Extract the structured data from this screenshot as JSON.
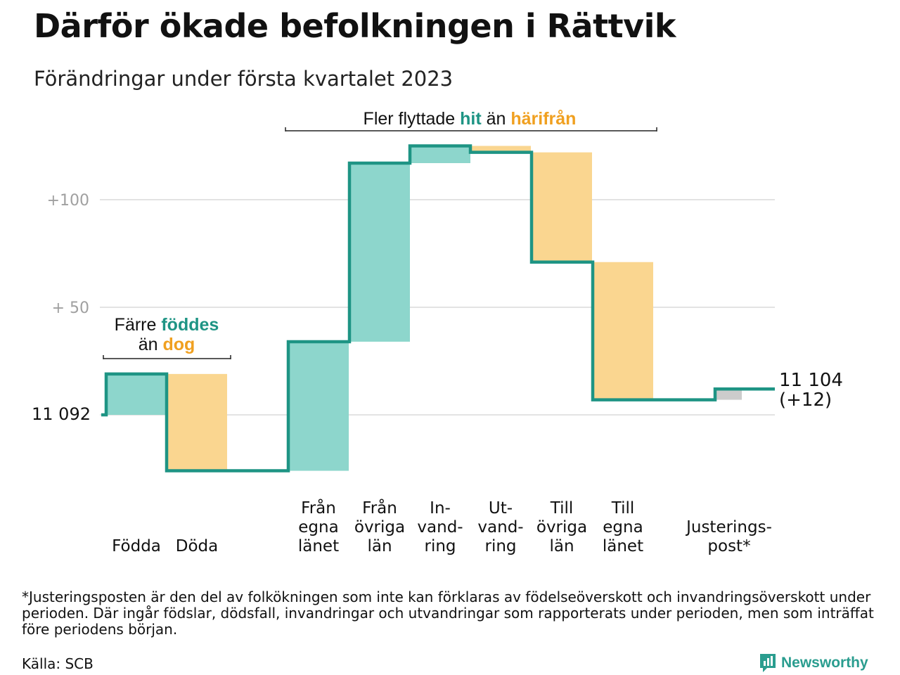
{
  "header": {
    "title": "Därför ökade befolkningen i Rättvik",
    "subtitle": "Förändringar under första kvartalet 2023"
  },
  "colors": {
    "inflow": "#8dd6cc",
    "outflow": "#fad690",
    "adjustment": "#cccccc",
    "line": "#1e9484",
    "teal_text": "#1e9484",
    "orange_text": "#f0a020",
    "grid": "#e3e3e3",
    "tick_text": "#a0a0a0"
  },
  "chart_data": {
    "type": "waterfall",
    "title": "Därför ökade befolkningen i Rättvik",
    "subtitle": "Förändringar under första kvartalet 2023",
    "start_value": 11092,
    "end_value": 11104,
    "end_label": "11 104",
    "end_change_label": "(+12)",
    "start_label": "11 092",
    "y_axis": {
      "ticks": [
        {
          "value": 0,
          "label": ""
        },
        {
          "value": 50,
          "label": "+ 50"
        },
        {
          "value": 100,
          "label": "+100"
        }
      ],
      "range": [
        -27,
        135
      ],
      "grid": true
    },
    "categories": [
      {
        "label_lines": [
          "Födda"
        ],
        "delta": 19,
        "kind": "inflow"
      },
      {
        "label_lines": [
          "Döda"
        ],
        "delta": -45,
        "kind": "outflow"
      },
      {
        "label_lines": [
          "Från",
          "egna",
          "länet"
        ],
        "delta": 60,
        "kind": "inflow"
      },
      {
        "label_lines": [
          "Från",
          "övriga",
          "län"
        ],
        "delta": 83,
        "kind": "inflow"
      },
      {
        "label_lines": [
          "In-",
          "vand-",
          "ring"
        ],
        "delta": 8,
        "kind": "inflow"
      },
      {
        "label_lines": [
          "Ut-",
          "vand-",
          "ring"
        ],
        "delta": -3,
        "kind": "outflow"
      },
      {
        "label_lines": [
          "Till",
          "övriga",
          "län"
        ],
        "delta": -51,
        "kind": "outflow"
      },
      {
        "label_lines": [
          "Till",
          "egna",
          "länet"
        ],
        "delta": -64,
        "kind": "outflow"
      },
      {
        "label_lines": [
          "Justerings-",
          "post*"
        ],
        "delta": 5,
        "kind": "adjustment"
      }
    ],
    "annotations": [
      {
        "parts": [
          {
            "text": "Färre ",
            "style": "plain"
          },
          {
            "text": "föddes",
            "style": "teal"
          }
        ]
      },
      {
        "parts": [
          {
            "text": "än ",
            "style": "plain"
          },
          {
            "text": "dog",
            "style": "orange"
          }
        ]
      },
      {
        "parts": [
          {
            "text": "Fler flyttade ",
            "style": "plain"
          },
          {
            "text": "hit",
            "style": "teal"
          },
          {
            "text": " än ",
            "style": "plain"
          },
          {
            "text": "härifrån",
            "style": "orange"
          }
        ]
      }
    ]
  },
  "footer": {
    "footnote": "*Justeringsposten är den del av folkökningen som inte kan förklaras av födelseöverskott och invandringsöverskott under perioden. Där ingår födslar, dödsfall, invandringar och utvandringar som rapporterats under perioden, men som inträffat före periodens början.",
    "source": "Källa: SCB",
    "brand": "Newsworthy",
    "brand_icon": "newsworthy-logo-icon"
  }
}
